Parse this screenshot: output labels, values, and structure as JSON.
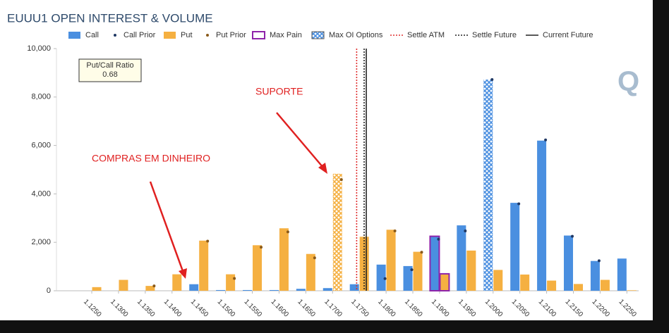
{
  "chart_data": {
    "type": "bar",
    "title": "EUUU1 OPEN INTEREST & VOLUME",
    "x": [
      1.125,
      1.13,
      1.135,
      1.14,
      1.145,
      1.15,
      1.155,
      1.16,
      1.165,
      1.17,
      1.175,
      1.18,
      1.185,
      1.19,
      1.195,
      1.2,
      1.205,
      1.21,
      1.215,
      1.22,
      1.225
    ],
    "xticks": [
      {
        "value": 1.125,
        "label": "1.1250"
      },
      {
        "value": 1.13,
        "label": "1.1300"
      },
      {
        "value": 1.135,
        "label": "1.1350"
      },
      {
        "value": 1.14,
        "label": "1.1400"
      },
      {
        "value": 1.145,
        "label": "1.1450"
      },
      {
        "value": 1.15,
        "label": "1.1500"
      },
      {
        "value": 1.155,
        "label": "1.1550"
      },
      {
        "value": 1.16,
        "label": "1.1600"
      },
      {
        "value": 1.165,
        "label": "1.1650"
      },
      {
        "value": 1.17,
        "label": "1.1700"
      },
      {
        "value": 1.175,
        "label": "1.1750"
      },
      {
        "value": 1.18,
        "label": "1.1800"
      },
      {
        "value": 1.185,
        "label": "1.1850"
      },
      {
        "value": 1.19,
        "label": "1.1900"
      },
      {
        "value": 1.195,
        "label": "1.1950"
      },
      {
        "value": 1.2,
        "label": "1.2000"
      },
      {
        "value": 1.205,
        "label": "1.2050"
      },
      {
        "value": 1.21,
        "label": "1.2100"
      },
      {
        "value": 1.215,
        "label": "1.2150"
      },
      {
        "value": 1.22,
        "label": "1.2200"
      },
      {
        "value": 1.225,
        "label": "1.2250"
      }
    ],
    "xlim": [
      1.1184,
      1.2272
    ],
    "series": [
      {
        "name": "Call",
        "color": "#4a8fe0",
        "values": [
          0,
          0,
          0,
          0,
          270,
          30,
          30,
          30,
          80,
          110,
          270,
          1080,
          1020,
          2250,
          2700,
          8720,
          3630,
          6200,
          2280,
          1230,
          1330
        ]
      },
      {
        "name": "Put",
        "color": "#f5b041",
        "values": [
          150,
          450,
          200,
          680,
          2070,
          680,
          1880,
          2580,
          1520,
          4830,
          2230,
          2520,
          1610,
          700,
          1660,
          860,
          670,
          420,
          280,
          450,
          20
        ]
      }
    ],
    "prior_series": [
      {
        "name": "Call Prior",
        "color": "#1f3864",
        "values": [
          null,
          null,
          null,
          null,
          null,
          null,
          null,
          null,
          null,
          null,
          null,
          500,
          870,
          2130,
          2470,
          8720,
          3590,
          6230,
          2250,
          1240,
          null
        ]
      },
      {
        "name": "Put Prior",
        "color": "#8a5a1a",
        "values": [
          null,
          null,
          200,
          null,
          2050,
          510,
          1800,
          2430,
          1360,
          4590,
          null,
          2470,
          1590,
          null,
          null,
          null,
          null,
          null,
          null,
          null,
          null
        ]
      }
    ],
    "max_pain": {
      "name": "Max Pain",
      "color": "#8e24aa",
      "x": 1.19
    },
    "max_oi": {
      "name": "Max OI Options",
      "call_x": 1.2,
      "put_x": 1.17
    },
    "vlines": [
      {
        "name": "Settle ATM",
        "value": 1.1745,
        "color": "#e03030",
        "dash": "2 2"
      },
      {
        "name": "Settle Future",
        "value": 1.1759,
        "color": "#222222",
        "dash": "2 2"
      },
      {
        "name": "Current Future",
        "value": 1.1763,
        "color": "#222222",
        "dash": "none"
      }
    ],
    "ylim": [
      0,
      10000
    ],
    "yticks": [
      0,
      {
        "value": 2000,
        "label": "2,000"
      },
      {
        "value": 4000,
        "label": "4,000"
      },
      {
        "value": 6000,
        "label": "6,000"
      },
      {
        "value": 8000,
        "label": "8,000"
      },
      {
        "value": 10000,
        "label": "10,000"
      }
    ],
    "grid": false,
    "put_call_ratio": {
      "label": "Put/Call Ratio",
      "value": 0.68
    },
    "annotations": [
      {
        "text": "SUPORTE"
      },
      {
        "text": "COMPRAS EM DINHEIRO"
      }
    ]
  }
}
